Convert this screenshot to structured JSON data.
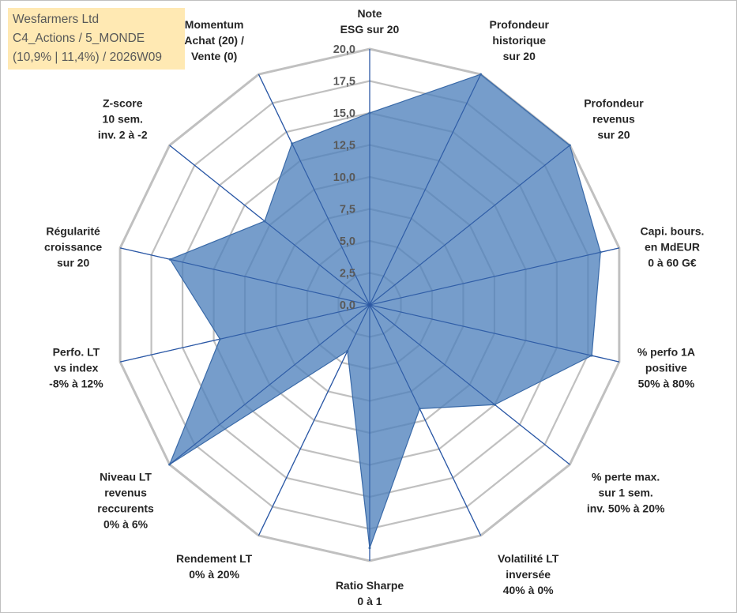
{
  "header": {
    "lines": [
      "Wesfarmers Ltd",
      "C4_Actions / 5_MONDE",
      "(10,9% | 11,4%) / 2026W09"
    ]
  },
  "chart_data": {
    "type": "radar",
    "title": "Wesfarmers Ltd",
    "range": [
      0,
      20
    ],
    "ticks": [
      "0,0",
      "2,5",
      "5,0",
      "7,5",
      "10,0",
      "12,5",
      "15,0",
      "17,5",
      "20,0"
    ],
    "grid": true,
    "fill_color": "#4f81bd",
    "fill_opacity": 0.78,
    "grid_color": "#c0c0c0",
    "axis_color": "#2e5fb0",
    "axes": [
      {
        "label": [
          "Note",
          "ESG sur 20"
        ],
        "value": 15.0
      },
      {
        "label": [
          "Profondeur",
          "historique",
          "sur 20"
        ],
        "value": 20.0
      },
      {
        "label": [
          "Profondeur",
          "revenus",
          "sur 20"
        ],
        "value": 20.0
      },
      {
        "label": [
          "Capi. bours.",
          "en MdEUR",
          "0 à 60 G€"
        ],
        "value": 18.5
      },
      {
        "label": [
          "% perfo 1A",
          "positive",
          "50% à 80%"
        ],
        "value": 17.8
      },
      {
        "label": [
          "% perte max.",
          "sur 1 sem.",
          "inv. 50% à 20%"
        ],
        "value": 12.5
      },
      {
        "label": [
          "Volatilité LT",
          "inversée",
          "40% à 0%"
        ],
        "value": 9.0
      },
      {
        "label": [
          "Ratio Sharpe",
          "0 à 1"
        ],
        "value": 19.0
      },
      {
        "label": [
          "Rendement LT",
          "0% à 20%"
        ],
        "value": 4.0
      },
      {
        "label": [
          "Niveau LT",
          "revenus",
          "reccurents",
          "0% à 6%"
        ],
        "value": 20.0
      },
      {
        "label": [
          "Perfo. LT",
          "vs index",
          "-8% à 12%"
        ],
        "value": 12.0
      },
      {
        "label": [
          "Régularité",
          "croissance",
          "sur 20"
        ],
        "value": 16.0
      },
      {
        "label": [
          "Z-score",
          "10 sem.",
          "inv. 2 à -2"
        ],
        "value": 10.5
      },
      {
        "label": [
          "Momentum",
          "Achat (20) /",
          "Vente (0)"
        ],
        "value": 14.0
      }
    ]
  }
}
